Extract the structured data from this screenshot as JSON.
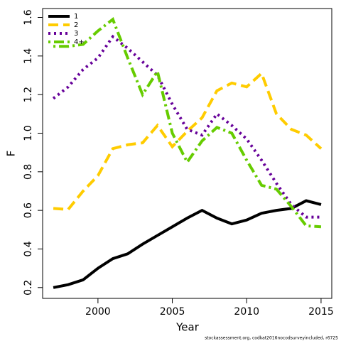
{
  "chart_data": {
    "type": "line",
    "xlabel": "Year",
    "ylabel": "F",
    "footnote": "stockassessment.org, codkat2016nocodsurveyincluded, r6725",
    "x": [
      1997,
      1998,
      1999,
      2000,
      2001,
      2002,
      2003,
      2004,
      2005,
      2006,
      2007,
      2008,
      2009,
      2010,
      2011,
      2012,
      2013,
      2014,
      2015
    ],
    "series": [
      {
        "name": "1",
        "color": "#000000",
        "dash": "solid",
        "values": [
          0.2,
          0.215,
          0.24,
          0.3,
          0.35,
          0.375,
          0.425,
          0.47,
          0.515,
          0.56,
          0.6,
          0.56,
          0.53,
          0.55,
          0.585,
          0.6,
          0.61,
          0.65,
          0.63
        ]
      },
      {
        "name": "2",
        "color": "#FFCC00",
        "dash": "dashed",
        "values": [
          0.61,
          0.605,
          0.7,
          0.78,
          0.92,
          0.94,
          0.95,
          1.04,
          0.93,
          1.01,
          1.08,
          1.22,
          1.26,
          1.24,
          1.31,
          1.1,
          1.02,
          0.99,
          0.92
        ]
      },
      {
        "name": "3",
        "color": "#660099",
        "dash": "dotted",
        "values": [
          1.18,
          1.24,
          1.33,
          1.39,
          1.5,
          1.44,
          1.37,
          1.3,
          1.15,
          1.02,
          0.99,
          1.1,
          1.04,
          0.97,
          0.86,
          0.74,
          0.63,
          0.565,
          0.565
        ]
      },
      {
        "name": "4+",
        "color": "#66CC00",
        "dash": "dotdash",
        "values": [
          1.45,
          1.45,
          1.46,
          1.53,
          1.59,
          1.39,
          1.2,
          1.32,
          1.0,
          0.85,
          0.96,
          1.03,
          1.0,
          0.86,
          0.73,
          0.71,
          0.62,
          0.52,
          0.515
        ]
      }
    ],
    "xlim": [
      1996.28,
      2015.72
    ],
    "xticks": [
      2000,
      2005,
      2010,
      2015
    ],
    "ylim": [
      0.144,
      1.646
    ],
    "yticks": [
      0.2,
      0.4,
      0.6,
      0.8,
      {
        "value": 1,
        "label": "1.0"
      },
      1.2,
      1.4,
      1.6
    ],
    "legend": "top-left",
    "grid": false
  }
}
